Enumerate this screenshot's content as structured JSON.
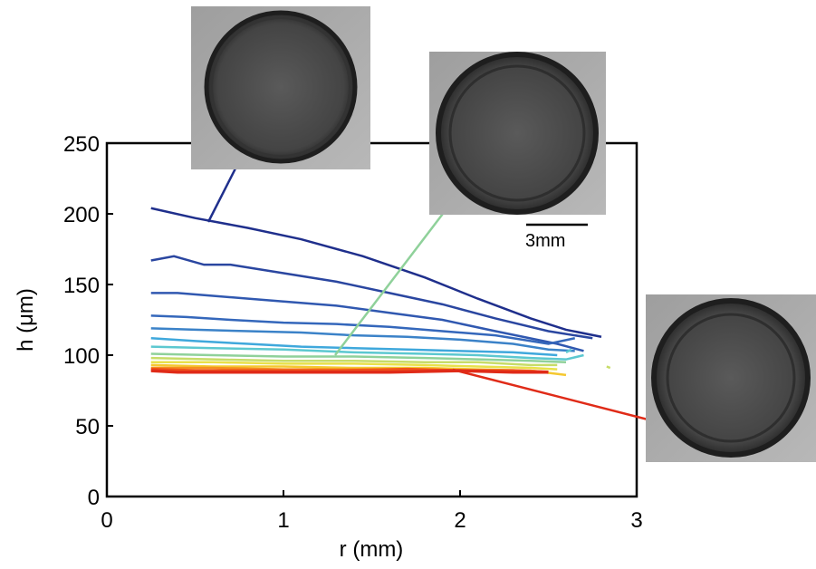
{
  "chart_data": {
    "type": "line",
    "xlabel": "r (mm)",
    "ylabel": "h (μm)",
    "xlim": [
      0,
      3
    ],
    "ylim": [
      0,
      250
    ],
    "x_ticks": [
      "0",
      "1",
      "2",
      "3"
    ],
    "y_ticks": [
      "0",
      "50",
      "100",
      "150",
      "200",
      "250"
    ],
    "x_tick_values": [
      0,
      1,
      2,
      3
    ],
    "y_tick_values": [
      0,
      50,
      100,
      150,
      200,
      250
    ],
    "grid": false,
    "colors": {
      "axis": "#000000",
      "inset_background": "#a8a8a8",
      "drop_fill": "#4a4a4a",
      "drop_rim": "#1e1e1e"
    },
    "series": [
      {
        "color": "#1f2f8c",
        "x": [
          0.25,
          0.5,
          0.8,
          1.1,
          1.45,
          1.8,
          2.1,
          2.4,
          2.6,
          2.8
        ],
        "y": [
          204,
          197,
          190,
          182,
          170,
          155,
          140,
          126,
          118,
          113
        ]
      },
      {
        "color": "#2a46a0",
        "x": [
          0.25,
          0.38,
          0.55,
          0.7,
          1.0,
          1.3,
          1.6,
          1.9,
          2.2,
          2.5,
          2.75
        ],
        "y": [
          167,
          170,
          164,
          164,
          158,
          152,
          144,
          136,
          126,
          117,
          112
        ]
      },
      {
        "color": "#3058b0",
        "x": [
          0.25,
          0.4,
          0.6,
          0.8,
          1.0,
          1.3,
          1.6,
          1.9,
          2.2,
          2.55,
          2.7
        ],
        "y": [
          144,
          144,
          142,
          140,
          138,
          135,
          130,
          125,
          117,
          108,
          103
        ]
      },
      {
        "color": "#3467bb",
        "x": [
          0.25,
          0.45,
          0.7,
          1.0,
          1.3,
          1.6,
          1.9,
          2.2,
          2.5,
          2.65
        ],
        "y": [
          128,
          127,
          125,
          123,
          122,
          120,
          117,
          114,
          108,
          112
        ]
      },
      {
        "color": "#3b82c8",
        "x": [
          0.25,
          0.5,
          0.8,
          1.1,
          1.4,
          1.7,
          2.0,
          2.3,
          2.5,
          2.65
        ],
        "y": [
          119,
          118,
          117,
          116,
          114,
          113,
          111,
          108,
          104,
          103
        ]
      },
      {
        "color": "#3fa8dc",
        "x": [
          0.25,
          0.5,
          0.8,
          1.1,
          1.4,
          1.7,
          2.0,
          2.3,
          2.55
        ],
        "y": [
          112,
          110,
          108,
          106,
          105,
          104,
          103,
          102,
          100
        ]
      },
      {
        "color": "#5cc8d0",
        "x": [
          0.25,
          0.6,
          1.0,
          1.4,
          1.8,
          2.1,
          2.4,
          2.6,
          2.7
        ],
        "y": [
          106,
          105,
          104,
          102,
          101,
          100,
          98,
          97,
          100
        ]
      },
      {
        "color": "#8fd19a",
        "x": [
          0.25,
          0.6,
          1.0,
          1.4,
          1.8,
          2.1,
          2.4,
          2.6
        ],
        "y": [
          101,
          100,
          99,
          99,
          98,
          97,
          96,
          95
        ]
      },
      {
        "color": "#c7dc68",
        "x": [
          0.25,
          0.6,
          1.0,
          1.4,
          1.8,
          2.1,
          2.4,
          2.55
        ],
        "y": [
          98,
          97,
          96,
          96,
          95,
          95,
          93,
          93
        ]
      },
      {
        "color": "#e8e14a",
        "x": [
          0.25,
          0.6,
          1.0,
          1.4,
          1.8,
          2.1,
          2.4,
          2.55
        ],
        "y": [
          95,
          95,
          94,
          94,
          93,
          92,
          91,
          90
        ]
      },
      {
        "color": "#f5c830",
        "x": [
          0.25,
          0.6,
          1.0,
          1.4,
          1.8,
          2.1,
          2.4,
          2.6
        ],
        "y": [
          93,
          92,
          92,
          91,
          91,
          90,
          89,
          86
        ]
      },
      {
        "color": "#f59020",
        "x": [
          0.25,
          0.6,
          1.0,
          1.4,
          1.8,
          2.1,
          2.4,
          2.5
        ],
        "y": [
          91,
          91,
          90,
          90,
          90,
          89,
          89,
          88
        ]
      },
      {
        "color": "#f05418",
        "x": [
          0.25,
          0.5,
          0.9,
          1.3,
          1.7,
          2.0,
          2.3,
          2.5
        ],
        "y": [
          90,
          89,
          89,
          89,
          90,
          89,
          89,
          88
        ]
      },
      {
        "color": "#e02b18",
        "x": [
          0.25,
          0.4,
          0.8,
          1.2,
          1.6,
          2.0,
          2.3,
          2.5
        ],
        "y": [
          89,
          88,
          88,
          88,
          88,
          89,
          88,
          88
        ]
      }
    ],
    "stray_points": [
      {
        "color": "#c7dc68",
        "x": [
          2.83,
          2.85
        ],
        "y": [
          92,
          91
        ]
      },
      {
        "color": "#5cc8d0",
        "x": [
          2.6,
          2.63
        ],
        "y": [
          102,
          104
        ]
      }
    ],
    "annotations": {
      "scale_bar": "3mm"
    }
  }
}
